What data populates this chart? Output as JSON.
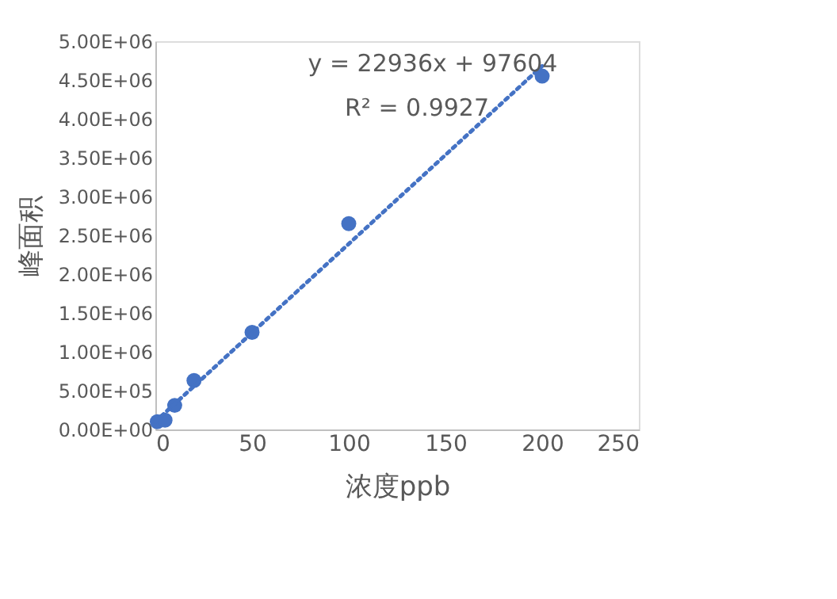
{
  "chart_data": {
    "type": "scatter",
    "xlabel": "浓度ppb",
    "ylabel": "峰面积",
    "xlim": [
      0,
      250
    ],
    "xticks": [
      0,
      50,
      100,
      150,
      200,
      250
    ],
    "ylim": [
      0,
      5000000
    ],
    "yticks": [
      {
        "value": 0,
        "label": "0.00E+00"
      },
      {
        "value": 500000,
        "label": "5.00E+05"
      },
      {
        "value": 1000000,
        "label": "1.00E+06"
      },
      {
        "value": 1500000,
        "label": "1.50E+06"
      },
      {
        "value": 2000000,
        "label": "2.00E+06"
      },
      {
        "value": 2500000,
        "label": "2.50E+06"
      },
      {
        "value": 3000000,
        "label": "3.00E+06"
      },
      {
        "value": 3500000,
        "label": "3.50E+06"
      },
      {
        "value": 4000000,
        "label": "4.00E+06"
      },
      {
        "value": 4500000,
        "label": "4.50E+06"
      },
      {
        "value": 5000000,
        "label": "5.00E+06"
      }
    ],
    "grid": false,
    "marker": "circle",
    "series": [
      {
        "color": "#4472c4",
        "x": [
          1,
          5,
          10,
          20,
          50,
          100,
          200
        ],
        "values": [
          100000,
          120000,
          310000,
          630000,
          1250000,
          2650000,
          4550000
        ]
      },
      {
        "type": "line",
        "color": "#4472c4",
        "line_style": "dotted",
        "marker": "none",
        "x": [
          0,
          200
        ],
        "values": [
          100000,
          4680000
        ]
      }
    ],
    "annotations": [
      "y = 22936x + 97604",
      "R² = 0.9927"
    ]
  }
}
